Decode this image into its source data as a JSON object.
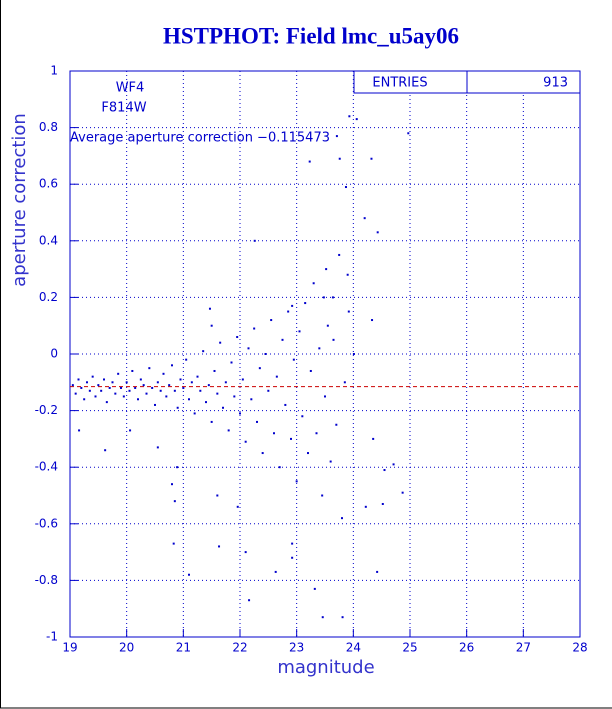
{
  "chart_data": {
    "type": "scatter",
    "title": "HSTPHOT: Field lmc_u5ay06",
    "x_label": "magnitude",
    "y_label": "aperture correction",
    "annotations": [
      "WF4",
      "F814W",
      "Average aperture correction −0.115473"
    ],
    "average_line": -0.115473,
    "average_line_color": "#cc0000",
    "stats": {
      "label": "ENTRIES",
      "value": 913
    },
    "color": "#0000cc",
    "grid": true,
    "xlim": [
      19,
      28
    ],
    "xticks": [
      19,
      20,
      21,
      22,
      23,
      24,
      25,
      26,
      27,
      28
    ],
    "ylim": [
      -1,
      1
    ],
    "yticks": [
      -1,
      -0.8,
      -0.6,
      -0.4,
      -0.2,
      0,
      0.2,
      0.4,
      0.6,
      0.8,
      1
    ],
    "x": [
      19.05,
      19.1,
      19.15,
      19.2,
      19.25,
      19.3,
      19.35,
      19.4,
      19.45,
      19.5,
      19.55,
      19.6,
      19.65,
      19.7,
      19.75,
      19.8,
      19.85,
      19.9,
      19.95,
      20.0,
      20.05,
      20.1,
      20.15,
      20.2,
      20.25,
      20.3,
      20.35,
      20.4,
      20.45,
      20.5,
      20.55,
      20.6,
      20.65,
      20.7,
      20.75,
      20.8,
      20.85,
      20.9,
      20.95,
      21.0,
      21.05,
      21.1,
      21.15,
      21.2,
      21.25,
      21.3,
      21.35,
      21.4,
      21.45,
      21.5,
      21.55,
      21.6,
      21.65,
      21.7,
      21.75,
      21.8,
      21.85,
      21.9,
      21.95,
      22.0,
      22.05,
      22.1,
      22.15,
      22.2,
      22.25,
      22.3,
      22.35,
      22.4,
      22.45,
      22.5,
      22.55,
      22.6,
      22.65,
      22.7,
      22.75,
      22.8,
      22.85,
      22.9,
      22.95,
      23.0,
      23.05,
      23.1,
      23.15,
      23.2,
      23.25,
      23.3,
      23.35,
      23.4,
      23.45,
      23.5,
      23.55,
      23.6,
      23.65,
      23.7,
      23.75,
      23.8,
      23.85,
      23.9,
      19.16,
      20.06,
      19.62,
      20.55,
      20.85,
      20.83,
      21.1,
      20.89,
      20.8,
      21.47,
      21.5,
      21.63,
      21.6,
      22.26,
      22.16,
      22.1,
      21.96,
      22.92,
      22.92,
      22.92,
      22.63,
      23.23,
      23.76,
      23.87,
      23.71,
      23.81,
      23.46,
      23.32,
      23.93,
      24.06,
      24.32,
      24.2,
      24.43,
      24.33,
      24.35,
      24.55,
      24.71,
      24.87,
      24.97,
      24.42,
      24.52,
      24.22,
      23.52,
      23.48,
      23.64,
      23.92,
      24.01
    ],
    "values": [
      -0.11,
      -0.14,
      -0.09,
      -0.12,
      -0.16,
      -0.1,
      -0.13,
      -0.08,
      -0.15,
      -0.11,
      -0.13,
      -0.09,
      -0.17,
      -0.12,
      -0.1,
      -0.14,
      -0.07,
      -0.12,
      -0.15,
      -0.1,
      -0.13,
      -0.06,
      -0.12,
      -0.16,
      -0.09,
      -0.11,
      -0.14,
      -0.05,
      -0.12,
      -0.18,
      -0.1,
      -0.13,
      -0.07,
      -0.15,
      -0.11,
      -0.04,
      -0.13,
      -0.19,
      -0.09,
      -0.12,
      -0.02,
      -0.16,
      -0.1,
      -0.21,
      -0.08,
      -0.13,
      0.01,
      -0.17,
      -0.11,
      -0.24,
      -0.06,
      -0.14,
      0.04,
      -0.19,
      -0.1,
      -0.27,
      -0.03,
      -0.15,
      0.06,
      -0.21,
      -0.09,
      -0.31,
      0.02,
      -0.16,
      0.09,
      -0.24,
      -0.05,
      -0.35,
      0.0,
      -0.13,
      0.12,
      -0.28,
      -0.08,
      -0.4,
      0.05,
      -0.18,
      0.15,
      -0.3,
      -0.02,
      -0.45,
      0.08,
      -0.22,
      0.18,
      -0.35,
      -0.06,
      0.25,
      -0.28,
      0.02,
      -0.5,
      -0.15,
      0.1,
      -0.38,
      0.05,
      -0.25,
      0.35,
      -0.58,
      -0.1,
      0.28,
      -0.27,
      -0.27,
      -0.34,
      -0.33,
      -0.52,
      -0.67,
      -0.78,
      -0.4,
      -0.46,
      0.16,
      0.1,
      -0.68,
      -0.5,
      0.4,
      -0.87,
      -0.7,
      -0.54,
      0.17,
      -0.67,
      -0.72,
      -0.77,
      0.68,
      0.69,
      0.59,
      0.77,
      -0.93,
      -0.93,
      -0.83,
      0.84,
      0.83,
      0.69,
      0.48,
      0.43,
      0.12,
      -0.3,
      -0.41,
      -0.39,
      -0.49,
      0.78,
      -0.77,
      -0.53,
      -0.54,
      0.3,
      0.2,
      0.2,
      0.15,
      0.0
    ]
  }
}
